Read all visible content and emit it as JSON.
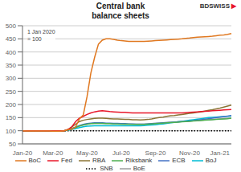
{
  "chart_data": {
    "type": "line",
    "title": "Central bank\nbalance sheets",
    "subtitle": "1 Jan 2020\n= 100",
    "annotations": [
      {
        "text": "BDSWISS",
        "color": "#333333"
      },
      {
        "text": "▶",
        "color": "#E8172A"
      }
    ],
    "categories": [
      "Jan-20",
      null,
      null,
      null,
      null,
      null,
      null,
      null,
      "Mar-20",
      null,
      null,
      null,
      null,
      null,
      null,
      null,
      null,
      "May-20",
      null,
      null,
      null,
      null,
      null,
      null,
      null,
      null,
      "Jul-20",
      null,
      null,
      null,
      null,
      null,
      null,
      null,
      null,
      "Sep-20",
      null,
      null,
      null,
      null,
      null,
      null,
      null,
      null,
      "Nov-20",
      null,
      null,
      null,
      null,
      null,
      null,
      null,
      "Jan-21",
      null,
      null,
      null
    ],
    "series": [
      {
        "name": "BoC",
        "color": "#E07820",
        "line_style": "solid",
        "values": [
          100,
          99,
          99,
          99,
          99,
          99,
          99,
          99,
          98,
          98,
          98,
          100,
          104,
          106,
          115,
          145,
          160,
          230,
          320,
          380,
          430,
          445,
          450,
          450,
          448,
          445,
          443,
          442,
          440,
          440,
          440,
          440,
          440,
          441,
          442,
          443,
          444,
          445,
          446,
          447,
          448,
          449,
          450,
          452,
          453,
          455,
          456,
          457,
          458,
          459,
          460,
          462,
          464,
          465,
          467,
          470
        ]
      },
      {
        "name": "Fed",
        "color": "#E8172A",
        "line_style": "solid",
        "values": [
          100,
          100,
          100,
          100,
          100,
          100,
          100,
          100,
          100,
          100,
          100,
          100,
          105,
          115,
          135,
          148,
          155,
          162,
          168,
          172,
          175,
          176,
          175,
          173,
          172,
          171,
          170,
          170,
          169,
          168,
          168,
          168,
          168,
          168,
          168,
          168,
          168,
          168,
          168,
          168,
          168,
          168,
          168,
          169,
          170,
          171,
          172,
          173,
          174,
          175,
          176,
          177,
          178,
          179,
          180,
          181
        ]
      },
      {
        "name": "RBA",
        "color": "#8B7536",
        "line_style": "solid",
        "values": [
          100,
          100,
          100,
          100,
          100,
          100,
          100,
          100,
          100,
          100,
          100,
          100,
          105,
          115,
          125,
          135,
          140,
          143,
          145,
          147,
          148,
          148,
          147,
          146,
          145,
          145,
          144,
          143,
          143,
          142,
          142,
          141,
          142,
          143,
          145,
          148,
          150,
          152,
          155,
          157,
          158,
          160,
          162,
          164,
          166,
          168,
          170,
          172,
          175,
          178,
          180,
          183,
          186,
          190,
          194,
          198
        ]
      },
      {
        "name": "Riksbank",
        "color": "#4CAF50",
        "line_style": "solid",
        "values": [
          100,
          100,
          100,
          100,
          100,
          100,
          100,
          100,
          100,
          100,
          100,
          100,
          103,
          108,
          112,
          118,
          122,
          125,
          127,
          128,
          128,
          128,
          127,
          127,
          126,
          126,
          125,
          125,
          125,
          124,
          124,
          124,
          124,
          125,
          126,
          127,
          128,
          129,
          130,
          131,
          132,
          133,
          134,
          135,
          136,
          137,
          138,
          139,
          140,
          141,
          142,
          143,
          144,
          145,
          146,
          148
        ]
      },
      {
        "name": "ECB",
        "color": "#4472C4",
        "line_style": "solid",
        "values": [
          100,
          100,
          100,
          100,
          100,
          100,
          100,
          100,
          100,
          100,
          100,
          100,
          103,
          108,
          114,
          120,
          124,
          127,
          129,
          130,
          130,
          130,
          129,
          129,
          128,
          128,
          127,
          127,
          126,
          126,
          125,
          125,
          125,
          126,
          127,
          128,
          129,
          130,
          131,
          132,
          133,
          134,
          135,
          136,
          137,
          138,
          140,
          142,
          144,
          146,
          148,
          150,
          152,
          154,
          156,
          158
        ]
      },
      {
        "name": "BoJ",
        "color": "#00BCD4",
        "line_style": "solid",
        "values": [
          100,
          100,
          100,
          100,
          100,
          100,
          100,
          100,
          100,
          100,
          100,
          100,
          102,
          105,
          108,
          112,
          115,
          117,
          118,
          119,
          119,
          119,
          119,
          119,
          119,
          119,
          119,
          119,
          119,
          119,
          119,
          119,
          120,
          121,
          122,
          123,
          125,
          126,
          128,
          130,
          132,
          134,
          136,
          138,
          140,
          142,
          144,
          146,
          148,
          150,
          151,
          152,
          153,
          154,
          155,
          156
        ]
      },
      {
        "name": "SNB",
        "color": "#000000",
        "line_style": "dotted",
        "values": [
          100,
          100,
          100,
          100,
          100,
          100,
          100,
          100,
          100,
          100,
          100,
          100,
          100,
          100,
          100,
          100,
          100,
          100,
          100,
          100,
          100,
          100,
          100,
          100,
          100,
          100,
          100,
          100,
          100,
          100,
          100,
          100,
          100,
          100,
          100,
          100,
          100,
          100,
          100,
          100,
          100,
          100,
          100,
          100,
          100,
          100,
          100,
          100,
          100,
          100,
          100,
          100,
          100,
          100,
          100,
          100
        ]
      },
      {
        "name": "BoE",
        "color": "#9E9E9E",
        "line_style": "solid",
        "values": [
          100,
          100,
          100,
          100,
          100,
          100,
          100,
          100,
          100,
          100,
          100,
          100,
          103,
          108,
          113,
          118,
          122,
          125,
          127,
          128,
          128,
          128,
          127,
          127,
          126,
          126,
          126,
          125,
          125,
          125,
          125,
          125,
          125,
          126,
          127,
          128,
          129,
          130,
          131,
          132,
          133,
          134,
          135,
          136,
          137,
          138,
          139,
          140,
          141,
          142,
          143,
          144,
          145,
          146,
          147,
          148
        ]
      }
    ],
    "ylim": [
      50,
      500
    ],
    "yticks": [
      50,
      100,
      150,
      200,
      250,
      300,
      350,
      400,
      450,
      500
    ],
    "grid": true,
    "legend": "bottom"
  }
}
